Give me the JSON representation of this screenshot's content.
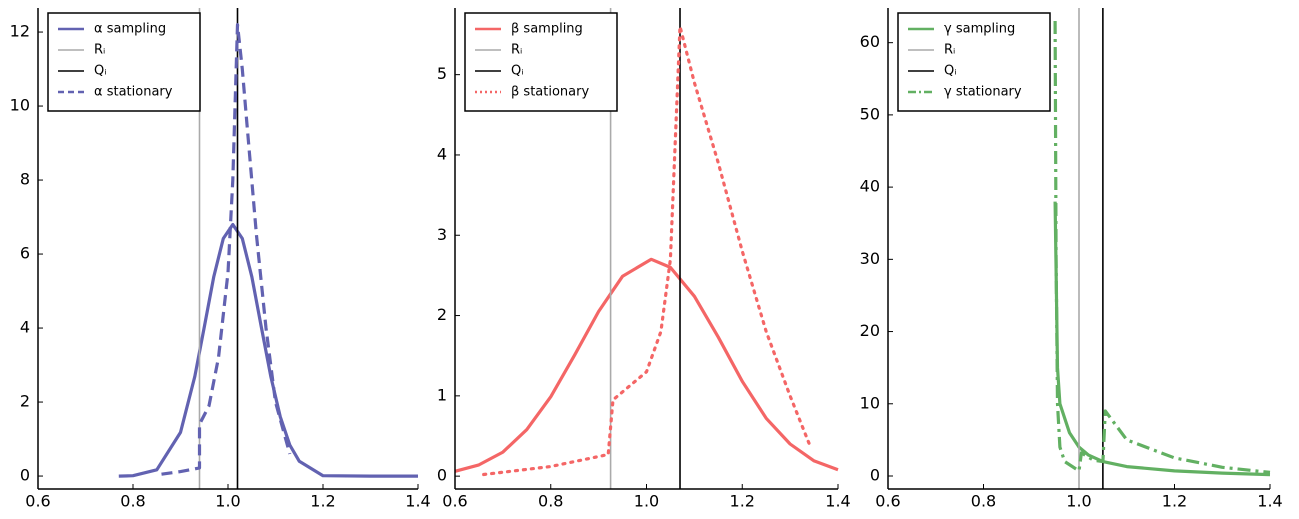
{
  "chart_data": [
    {
      "type": "line",
      "xlim": [
        0.6,
        1.4
      ],
      "ylim": [
        -0.35,
        12.65
      ],
      "xticks": [
        0.6,
        0.8,
        {
          "value": 1,
          "label": "1.0"
        },
        1.2,
        1.4
      ],
      "yticks": [
        0,
        2,
        4,
        6,
        8,
        10,
        12
      ],
      "legend": "top-left",
      "series": [
        {
          "name": "α sampling",
          "color": "#6262b1",
          "style": "solid",
          "x": [
            0.77,
            0.8,
            0.85,
            0.9,
            0.93,
            0.95,
            0.97,
            0.99,
            1.01,
            1.03,
            1.05,
            1.07,
            1.09,
            1.11,
            1.13,
            1.15,
            1.2,
            1.3,
            1.4
          ],
          "values": [
            0,
            0.01,
            0.17,
            1.18,
            2.69,
            4.03,
            5.39,
            6.42,
            6.8,
            6.42,
            5.39,
            4.03,
            2.69,
            1.6,
            0.84,
            0.4,
            0.01,
            0,
            0
          ]
        },
        {
          "name": "Rᵢ",
          "color": "#aaaaaa",
          "vline": 0.94
        },
        {
          "name": "Qᵢ",
          "color": "#000000",
          "vline": 1.02
        },
        {
          "name": "α stationary",
          "color": "#6262b1",
          "style": "dashed",
          "x": [
            0.86,
            0.9,
            0.94,
            0.94,
            0.96,
            0.98,
            1.0,
            1.01,
            1.02,
            1.03,
            1.04,
            1.06,
            1.08,
            1.1,
            1.13
          ],
          "values": [
            0.05,
            0.12,
            0.22,
            1.4,
            1.9,
            3.2,
            5.5,
            8,
            12.2,
            11,
            9.5,
            6.5,
            4,
            2,
            0.6
          ]
        }
      ]
    },
    {
      "type": "line",
      "xlim": [
        0.6,
        1.4
      ],
      "ylim": [
        -0.16,
        5.83
      ],
      "xticks": [
        0.6,
        0.8,
        {
          "value": 1,
          "label": "1.0"
        },
        1.2,
        1.4
      ],
      "yticks": [
        0,
        1,
        2,
        3,
        4,
        5
      ],
      "legend": "top-left",
      "series": [
        {
          "name": "β sampling",
          "color": "#f46666",
          "style": "solid",
          "x": [
            0.6,
            0.65,
            0.7,
            0.75,
            0.8,
            0.85,
            0.9,
            0.95,
            1.01,
            1.05,
            1.1,
            1.15,
            1.2,
            1.25,
            1.3,
            1.35,
            1.4
          ],
          "values": [
            0.06,
            0.14,
            0.3,
            0.58,
            0.99,
            1.51,
            2.05,
            2.49,
            2.7,
            2.6,
            2.24,
            1.73,
            1.18,
            0.72,
            0.4,
            0.19,
            0.08
          ]
        },
        {
          "name": "Rᵢ",
          "color": "#aaaaaa",
          "vline": 0.925
        },
        {
          "name": "Qᵢ",
          "color": "#000000",
          "vline": 1.07
        },
        {
          "name": "β stationary",
          "color": "#f46666",
          "style": "dotted",
          "x": [
            0.66,
            0.8,
            0.92,
            0.93,
            0.96,
            1.0,
            1.03,
            1.05,
            1.07,
            1.1,
            1.15,
            1.2,
            1.25,
            1.3,
            1.34
          ],
          "values": [
            0.02,
            0.12,
            0.27,
            0.95,
            1.1,
            1.3,
            1.8,
            2.7,
            5.6,
            4.9,
            3.9,
            2.8,
            1.8,
            1.0,
            0.4
          ]
        }
      ]
    },
    {
      "type": "line",
      "xlim": [
        0.6,
        1.4
      ],
      "ylim": [
        -1.8,
        64.8
      ],
      "xticks": [
        0.6,
        0.8,
        {
          "value": 1,
          "label": "1.0"
        },
        1.2,
        1.4
      ],
      "yticks": [
        0,
        10,
        20,
        30,
        40,
        50,
        60
      ],
      "legend": "top-left",
      "series": [
        {
          "name": "γ sampling",
          "color": "#62b062",
          "style": "solid",
          "x": [
            0.95,
            0.955,
            0.96,
            0.98,
            1.0,
            1.02,
            1.05,
            1.1,
            1.2,
            1.3,
            1.4
          ],
          "values": [
            38,
            15,
            10,
            6,
            4,
            2.9,
            2,
            1.3,
            0.7,
            0.4,
            0.2
          ]
        },
        {
          "name": "Rᵢ",
          "color": "#aaaaaa",
          "vline": 1.0
        },
        {
          "name": "Qᵢ",
          "color": "#000000",
          "vline": 1.05
        },
        {
          "name": "γ stationary",
          "color": "#62b062",
          "style": "dashdot",
          "x": [
            0.95,
            0.952,
            0.955,
            0.96,
            0.97,
            1.0,
            1.005,
            1.03,
            1.05,
            1.055,
            1.1,
            1.2,
            1.3,
            1.4
          ],
          "values": [
            63,
            30,
            10,
            4,
            2,
            0.7,
            3.2,
            2.2,
            2,
            9,
            5,
            2.5,
            1.2,
            0.5
          ]
        }
      ]
    }
  ]
}
